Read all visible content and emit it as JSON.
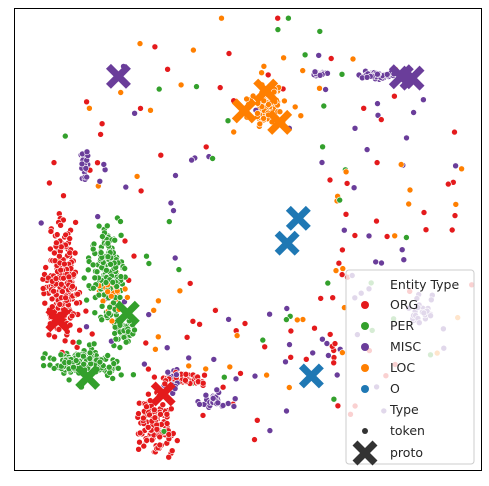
{
  "chart_data": {
    "type": "scatter",
    "title": "",
    "xlabel": "",
    "ylabel": "",
    "xlim": [
      0,
      1
    ],
    "ylim": [
      0,
      1
    ],
    "ticks": false,
    "grid": false,
    "legend": {
      "placement": "bottom-right",
      "title_hue": "Entity Type",
      "title_style": "Type",
      "hue_entries": [
        {
          "label": "ORG",
          "color": "#e41a1c"
        },
        {
          "label": "PER",
          "color": "#33a02c"
        },
        {
          "label": "MISC",
          "color": "#6a3d9a"
        },
        {
          "label": "LOC",
          "color": "#ff7f00"
        },
        {
          "label": "O",
          "color": "#1f78b4"
        }
      ],
      "style_entries": [
        {
          "label": "token",
          "marker": "circle"
        },
        {
          "label": "proto",
          "marker": "x"
        }
      ]
    },
    "colors": {
      "ORG": "#e41a1c",
      "PER": "#33a02c",
      "MISC": "#6a3d9a",
      "LOC": "#ff7f00",
      "O": "#1f78b4",
      "legend_marker": "#333333"
    },
    "prototypes": [
      {
        "type": "MISC",
        "x": 0.222,
        "y": 0.854
      },
      {
        "type": "MISC",
        "x": 0.829,
        "y": 0.853
      },
      {
        "type": "MISC",
        "x": 0.852,
        "y": 0.85
      },
      {
        "type": "LOC",
        "x": 0.538,
        "y": 0.822
      },
      {
        "type": "LOC",
        "x": 0.492,
        "y": 0.779
      },
      {
        "type": "LOC",
        "x": 0.568,
        "y": 0.754
      },
      {
        "type": "O",
        "x": 0.608,
        "y": 0.546
      },
      {
        "type": "O",
        "x": 0.584,
        "y": 0.492
      },
      {
        "type": "O",
        "x": 0.636,
        "y": 0.204
      },
      {
        "type": "ORG",
        "x": 0.092,
        "y": 0.326
      },
      {
        "type": "ORG",
        "x": 0.318,
        "y": 0.165
      },
      {
        "type": "PER",
        "x": 0.241,
        "y": 0.34
      },
      {
        "type": "PER",
        "x": 0.156,
        "y": 0.201
      }
    ],
    "clusters": [
      {
        "type": "ORG",
        "cx": 0.1,
        "cy": 0.4,
        "sx": 0.04,
        "sy": 0.12,
        "n": 230
      },
      {
        "type": "ORG",
        "cx": 0.3,
        "cy": 0.1,
        "sx": 0.04,
        "sy": 0.06,
        "n": 120
      },
      {
        "type": "ORG",
        "cx": 0.36,
        "cy": 0.2,
        "sx": 0.06,
        "sy": 0.015,
        "n": 45
      },
      {
        "type": "PER",
        "cx": 0.2,
        "cy": 0.43,
        "sx": 0.04,
        "sy": 0.09,
        "n": 170
      },
      {
        "type": "PER",
        "cx": 0.15,
        "cy": 0.23,
        "sx": 0.07,
        "sy": 0.035,
        "n": 160
      },
      {
        "type": "PER",
        "cx": 0.23,
        "cy": 0.31,
        "sx": 0.03,
        "sy": 0.05,
        "n": 50
      },
      {
        "type": "LOC",
        "cx": 0.54,
        "cy": 0.79,
        "sx": 0.04,
        "sy": 0.05,
        "n": 90
      },
      {
        "type": "LOC",
        "cx": 0.21,
        "cy": 0.38,
        "sx": 0.03,
        "sy": 0.06,
        "n": 30
      },
      {
        "type": "MISC",
        "cx": 0.78,
        "cy": 0.855,
        "sx": 0.05,
        "sy": 0.008,
        "n": 55
      },
      {
        "type": "MISC",
        "cx": 0.65,
        "cy": 0.86,
        "sx": 0.02,
        "sy": 0.006,
        "n": 20
      },
      {
        "type": "MISC",
        "cx": 0.15,
        "cy": 0.66,
        "sx": 0.01,
        "sy": 0.04,
        "n": 22
      },
      {
        "type": "MISC",
        "cx": 0.43,
        "cy": 0.15,
        "sx": 0.04,
        "sy": 0.02,
        "n": 30
      },
      {
        "type": "MISC",
        "cx": 0.87,
        "cy": 0.34,
        "sx": 0.02,
        "sy": 0.04,
        "n": 30
      },
      {
        "type": "MISC",
        "cx": 0.34,
        "cy": 0.19,
        "sx": 0.02,
        "sy": 0.03,
        "n": 18
      }
    ],
    "scattered": [
      {
        "type": "ORG",
        "n": 85
      },
      {
        "type": "PER",
        "n": 35
      },
      {
        "type": "MISC",
        "n": 75
      },
      {
        "type": "LOC",
        "n": 50
      }
    ]
  }
}
